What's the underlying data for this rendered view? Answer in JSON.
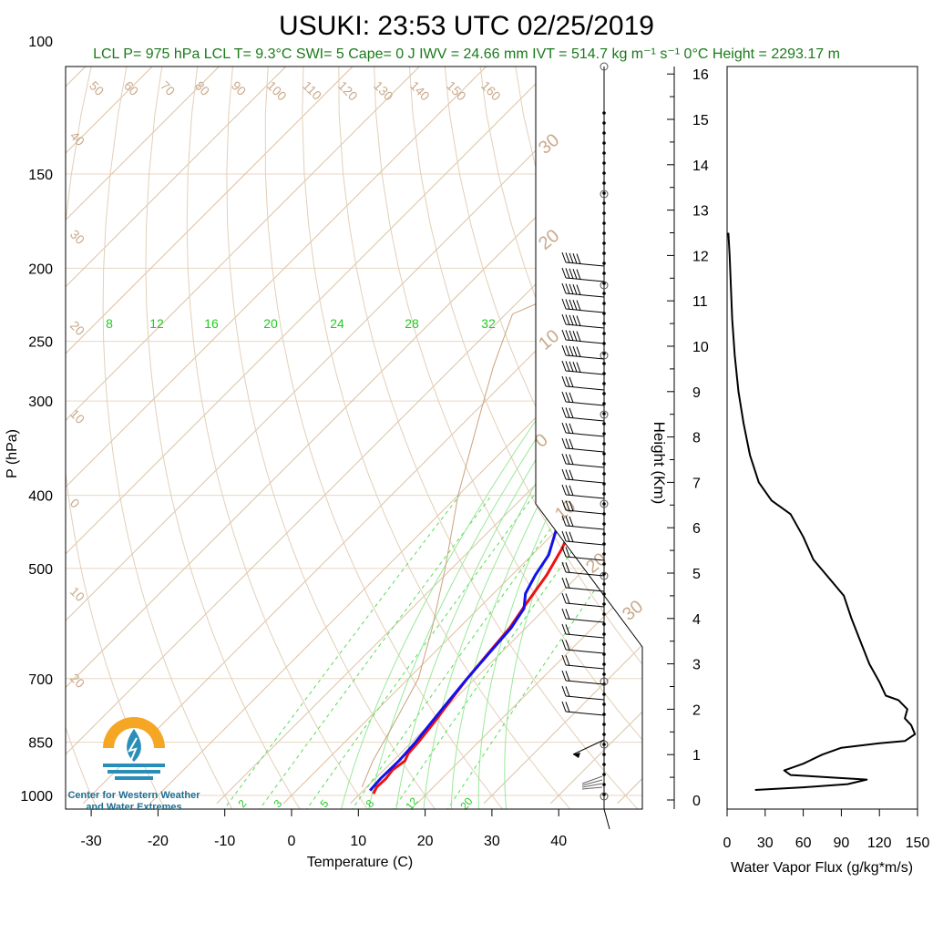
{
  "header": {
    "title": "USUKI: 23:53 UTC 02/25/2019",
    "subtitle": "LCL P= 975 hPa  LCL T= 9.3°C  SWI= 5  Cape= 0 J  IWV = 24.66 mm  IVT = 514.7 kg m⁻¹ s⁻¹  0°C Height = 2293.17 m"
  },
  "logo": {
    "line1": "Center for Western Weather",
    "line2": "and Water Extremes"
  },
  "chart_data": [
    {
      "type": "line",
      "chart": "skew-t",
      "xlabel": "Temperature (C)",
      "ylabel": "P (hPa)",
      "xlim": [
        -33,
        48
      ],
      "ylim": [
        1025,
        100
      ],
      "yscale": "log",
      "xticks": [
        -30,
        -20,
        -10,
        0,
        10,
        20,
        30,
        40
      ],
      "yticks": [
        100,
        150,
        200,
        250,
        300,
        400,
        500,
        700,
        850,
        1000
      ],
      "mixing_ratio_labels_upper": [
        "8",
        "12",
        "16",
        "20",
        "24",
        "28",
        "32"
      ],
      "mixing_ratio_labels_lower": [
        "2",
        "3",
        "5",
        "8",
        "12",
        "20"
      ],
      "skew_labels_top": [
        "50",
        "60",
        "70",
        "80",
        "90",
        "100",
        "110",
        "120",
        "130",
        "140",
        "150",
        "160"
      ],
      "skew_labels_left": [
        "40",
        "30",
        "20",
        "10",
        "0",
        "10",
        "20"
      ],
      "skew_labels_right": [
        "30",
        "20",
        "10",
        "0",
        "10",
        "20",
        "30"
      ],
      "series": [
        {
          "name": "temperature",
          "color": "#ee1111",
          "points": [
            [
              12,
              995
            ],
            [
              11.5,
              975
            ],
            [
              11.6,
              950
            ],
            [
              11.3,
              925
            ],
            [
              11.8,
              900
            ],
            [
              11.2,
              880
            ],
            [
              11,
              850
            ],
            [
              10.4,
              800
            ],
            [
              9.6,
              750
            ],
            [
              8.8,
              700
            ],
            [
              8.2,
              650
            ],
            [
              7.6,
              600
            ],
            [
              6.5,
              560
            ],
            [
              5.2,
              510
            ],
            [
              3.5,
              470
            ],
            [
              1,
              430
            ],
            [
              -2.5,
              395
            ],
            [
              -6,
              355
            ],
            [
              -9.5,
              320
            ],
            [
              -13,
              290
            ],
            [
              -16.5,
              262
            ],
            [
              -20,
              238
            ],
            [
              -22.5,
              225
            ],
            [
              -23,
              220
            ],
            [
              -22,
              215
            ],
            [
              -17,
              210
            ],
            [
              -14,
              205
            ],
            [
              -11,
              195
            ],
            [
              -9,
              188
            ],
            [
              -7.5,
              183
            ],
            [
              -6,
              181
            ],
            [
              -5,
              177
            ],
            [
              -3.5,
              172
            ]
          ]
        },
        {
          "name": "dewpoint",
          "color": "#1111ee",
          "points": [
            [
              11,
              985
            ],
            [
              10.8,
              950
            ],
            [
              10.9,
              900
            ],
            [
              10.6,
              850
            ],
            [
              10,
              800
            ],
            [
              9.4,
              750
            ],
            [
              8.8,
              700
            ],
            [
              8.3,
              650
            ],
            [
              7.8,
              600
            ],
            [
              6.8,
              565
            ],
            [
              4.8,
              540
            ],
            [
              3.5,
              510
            ],
            [
              2.5,
              480
            ],
            [
              -0.5,
              440
            ],
            [
              -4,
              400
            ],
            [
              -7.5,
              370
            ],
            [
              -11,
              340
            ],
            [
              -14,
              315
            ],
            [
              -17.5,
              290
            ],
            [
              -21,
              268
            ],
            [
              -23,
              252
            ],
            [
              -24,
              240
            ],
            [
              -26,
              228
            ],
            [
              -27.5,
              220
            ],
            [
              -28,
              217
            ],
            [
              -32,
              210
            ],
            [
              -34,
              205
            ],
            [
              -35,
              195
            ],
            [
              -35.5,
              185
            ],
            [
              -35.5,
              175
            ],
            [
              -34,
              172
            ]
          ]
        }
      ]
    },
    {
      "type": "line",
      "chart": "water-vapor-flux-profile",
      "xlabel": "Water Vapor Flux (g/kg*m/s)",
      "ylabel": "Height (Km)",
      "xlim": [
        0,
        150
      ],
      "ylim": [
        -0.2,
        16.4
      ],
      "xticks": [
        0,
        30,
        60,
        90,
        120,
        150
      ],
      "yticks": [
        0,
        1,
        2,
        3,
        4,
        5,
        6,
        7,
        8,
        9,
        10,
        11,
        12,
        13,
        14,
        15,
        16
      ],
      "series": [
        {
          "name": "",
          "color": "#000000",
          "points": [
            [
              22,
              0.22
            ],
            [
              60,
              0.28
            ],
            [
              95,
              0.35
            ],
            [
              110,
              0.45
            ],
            [
              80,
              0.5
            ],
            [
              50,
              0.55
            ],
            [
              45,
              0.65
            ],
            [
              60,
              0.8
            ],
            [
              75,
              1.0
            ],
            [
              90,
              1.15
            ],
            [
              120,
              1.25
            ],
            [
              140,
              1.3
            ],
            [
              148,
              1.45
            ],
            [
              145,
              1.65
            ],
            [
              140,
              1.8
            ],
            [
              142,
              2.0
            ],
            [
              135,
              2.2
            ],
            [
              125,
              2.3
            ],
            [
              120,
              2.6
            ],
            [
              112,
              3.0
            ],
            [
              105,
              3.5
            ],
            [
              98,
              4.0
            ],
            [
              92,
              4.5
            ],
            [
              80,
              4.9
            ],
            [
              68,
              5.3
            ],
            [
              60,
              5.8
            ],
            [
              50,
              6.3
            ],
            [
              35,
              6.6
            ],
            [
              25,
              7.0
            ],
            [
              18,
              7.6
            ],
            [
              13,
              8.3
            ],
            [
              9,
              9.0
            ],
            [
              6,
              9.8
            ],
            [
              4,
              10.6
            ],
            [
              3,
              11.3
            ],
            [
              2,
              12.0
            ],
            [
              1,
              12.5
            ]
          ]
        }
      ]
    }
  ]
}
